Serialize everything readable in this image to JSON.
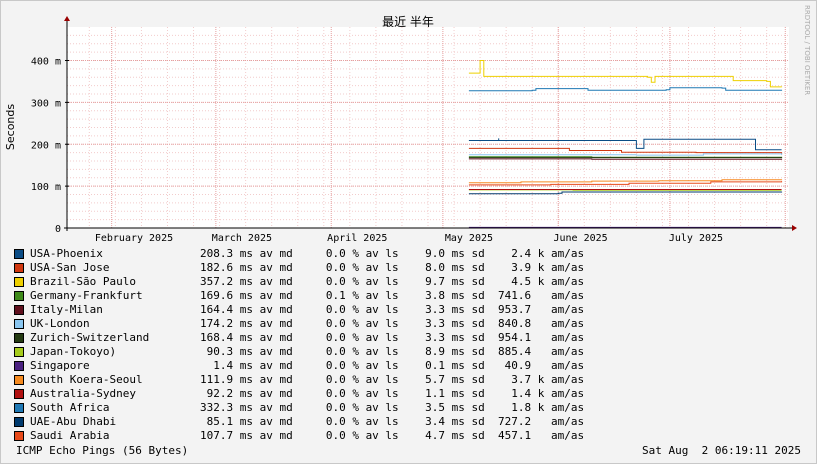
{
  "chart_data": {
    "type": "line",
    "title": "最近 半年",
    "ylabel": "Seconds",
    "watermark": "RRDTOOL / TOBI OETIKER",
    "ylim": [
      0,
      0.48
    ],
    "yticks": [
      {
        "value": 0,
        "label": "0"
      },
      {
        "value": 0.1,
        "label": "100 m"
      },
      {
        "value": 0.2,
        "label": "200 m"
      },
      {
        "value": 0.3,
        "label": "300 m"
      },
      {
        "value": 0.4,
        "label": "400 m"
      }
    ],
    "xlim": [
      "2025-01-20",
      "2025-08-02"
    ],
    "xticks": [
      {
        "date": "2025-02-07",
        "label": "February 2025"
      },
      {
        "date": "2025-03-08",
        "label": "March 2025"
      },
      {
        "date": "2025-04-08",
        "label": "April 2025"
      },
      {
        "date": "2025-05-08",
        "label": "May 2025"
      },
      {
        "date": "2025-06-07",
        "label": "June 2025"
      },
      {
        "date": "2025-07-08",
        "label": "July 2025"
      }
    ],
    "grid": true,
    "colors": {
      "background": "#F3F3F3",
      "plot": "#FFFFFF",
      "major_grid": "#E5A0A0",
      "minor_grid": "#F2CCCC",
      "axis": "#000000",
      "arrow": "#990000"
    },
    "series": [
      {
        "name": "USA-Phoenix",
        "color": "#0A4C85",
        "stats": "208.3 ms av md     0.0 % av ls    9.0 ms sd    2.4 k am/as",
        "points": [
          [
            "2025-05-08",
            0.209
          ],
          [
            "2025-05-16",
            0.21
          ],
          [
            "2025-05-16",
            0.214
          ],
          [
            "2025-05-16",
            0.209
          ],
          [
            "2025-06-01",
            0.209
          ],
          [
            "2025-06-22",
            0.21
          ],
          [
            "2025-06-22",
            0.19
          ],
          [
            "2025-06-23",
            0.19
          ],
          [
            "2025-06-24",
            0.212
          ],
          [
            "2025-07-24",
            0.212
          ],
          [
            "2025-07-24",
            0.187
          ],
          [
            "2025-07-31",
            0.187
          ]
        ]
      },
      {
        "name": "USA-San Jose",
        "color": "#D03810",
        "stats": "182.6 ms av md     0.0 % av ls    8.0 ms sd    3.9 k am/as",
        "points": [
          [
            "2025-05-08",
            0.19
          ],
          [
            "2025-05-22",
            0.19
          ],
          [
            "2025-06-04",
            0.185
          ],
          [
            "2025-06-18",
            0.181
          ],
          [
            "2025-07-08",
            0.18
          ],
          [
            "2025-07-31",
            0.176
          ]
        ]
      },
      {
        "name": "Brazil-São Paulo",
        "color": "#EED000",
        "stats": "357.2 ms av md     0.0 % av ls    9.7 ms sd    4.5 k am/as",
        "points": [
          [
            "2025-05-08",
            0.37
          ],
          [
            "2025-05-10",
            0.37
          ],
          [
            "2025-05-11",
            0.4
          ],
          [
            "2025-05-12",
            0.362
          ],
          [
            "2025-06-10",
            0.362
          ],
          [
            "2025-06-25",
            0.36
          ],
          [
            "2025-06-26",
            0.348
          ],
          [
            "2025-06-27",
            0.362
          ],
          [
            "2025-07-17",
            0.362
          ],
          [
            "2025-07-18",
            0.352
          ],
          [
            "2025-07-27",
            0.35
          ],
          [
            "2025-07-28",
            0.337
          ],
          [
            "2025-07-31",
            0.336
          ]
        ]
      },
      {
        "name": "Germany-Frankfurt",
        "color": "#3E8A1A",
        "stats": "169.6 ms av md     0.1 % av ls    3.8 ms sd  741.6   am/as",
        "points": [
          [
            "2025-05-08",
            0.17
          ],
          [
            "2025-06-10",
            0.169
          ],
          [
            "2025-07-31",
            0.168
          ]
        ]
      },
      {
        "name": "Italy-Milan",
        "color": "#60101E",
        "stats": "164.4 ms av md     0.0 % av ls    3.3 ms sd  953.7   am/as",
        "points": [
          [
            "2025-05-08",
            0.165
          ],
          [
            "2025-06-10",
            0.164
          ],
          [
            "2025-07-31",
            0.163
          ]
        ]
      },
      {
        "name": "UK-London",
        "color": "#8AC6F0",
        "stats": "174.2 ms av md     0.0 % av ls    3.3 ms sd  840.8   am/as",
        "points": [
          [
            "2025-05-08",
            0.175
          ],
          [
            "2025-06-22",
            0.174
          ],
          [
            "2025-07-10",
            0.177
          ],
          [
            "2025-07-31",
            0.174
          ]
        ]
      },
      {
        "name": "Zurich-Switzerland",
        "color": "#243A12",
        "stats": "168.4 ms av md     0.0 % av ls    3.3 ms sd  954.1   am/as",
        "points": [
          [
            "2025-05-08",
            0.168
          ],
          [
            "2025-06-10",
            0.168
          ],
          [
            "2025-07-31",
            0.167
          ]
        ]
      },
      {
        "name": "Japan-Tokoyo)",
        "color": "#A6CC1C",
        "stats": " 90.3 ms av md     0.0 % av ls    8.9 ms sd  885.4   am/as",
        "points": [
          [
            "2025-05-08",
            0.091
          ],
          [
            "2025-06-04",
            0.091
          ],
          [
            "2025-06-05",
            0.09
          ],
          [
            "2025-07-31",
            0.09
          ]
        ]
      },
      {
        "name": "Singapore",
        "color": "#4A2080",
        "stats": "  1.4 ms av md     0.0 % av ls    0.1 ms sd   40.9   am/as",
        "points": [
          [
            "2025-05-08",
            0.0014
          ],
          [
            "2025-07-31",
            0.0014
          ]
        ]
      },
      {
        "name": "South Koera-Seoul",
        "color": "#F58A20",
        "stats": "111.9 ms av md     0.0 % av ls    5.7 ms sd    3.7 k am/as",
        "points": [
          [
            "2025-05-08",
            0.108
          ],
          [
            "2025-05-22",
            0.11
          ],
          [
            "2025-06-10",
            0.112
          ],
          [
            "2025-06-28",
            0.113
          ],
          [
            "2025-07-15",
            0.115
          ],
          [
            "2025-07-31",
            0.116
          ]
        ]
      },
      {
        "name": "Australia-Sydney",
        "color": "#B01010",
        "stats": " 92.2 ms av md     0.0 % av ls    1.1 ms sd    1.4 k am/as",
        "points": [
          [
            "2025-05-08",
            0.092
          ],
          [
            "2025-07-31",
            0.092
          ]
        ]
      },
      {
        "name": "South Africa",
        "color": "#1F78B4",
        "stats": "332.3 ms av md     0.0 % av ls    3.5 ms sd    1.8 k am/as",
        "points": [
          [
            "2025-05-08",
            0.328
          ],
          [
            "2025-05-25",
            0.329
          ],
          [
            "2025-05-26",
            0.333
          ],
          [
            "2025-06-08",
            0.333
          ],
          [
            "2025-06-09",
            0.329
          ],
          [
            "2025-06-30",
            0.33
          ],
          [
            "2025-07-01",
            0.335
          ],
          [
            "2025-07-15",
            0.334
          ],
          [
            "2025-07-16",
            0.329
          ],
          [
            "2025-07-31",
            0.33
          ]
        ]
      },
      {
        "name": "UAE-Abu Dhabi",
        "color": "#003A6E",
        "stats": " 85.1 ms av md     0.0 % av ls    3.4 ms sd  727.2   am/as",
        "points": [
          [
            "2025-05-08",
            0.082
          ],
          [
            "2025-06-01",
            0.083
          ],
          [
            "2025-06-02",
            0.086
          ],
          [
            "2025-07-31",
            0.087
          ]
        ]
      },
      {
        "name": "Saudi Arabia",
        "color": "#E84A1A",
        "stats": "107.7 ms av md     0.0 % av ls    4.7 ms sd  457.1   am/as",
        "points": [
          [
            "2025-05-08",
            0.103
          ],
          [
            "2025-05-30",
            0.104
          ],
          [
            "2025-06-20",
            0.107
          ],
          [
            "2025-07-12",
            0.11
          ],
          [
            "2025-07-31",
            0.112
          ]
        ]
      }
    ]
  },
  "footer": {
    "left": "ICMP Echo Pings (56 Bytes)",
    "right": "Sat Aug  2 06:19:11 2025"
  }
}
